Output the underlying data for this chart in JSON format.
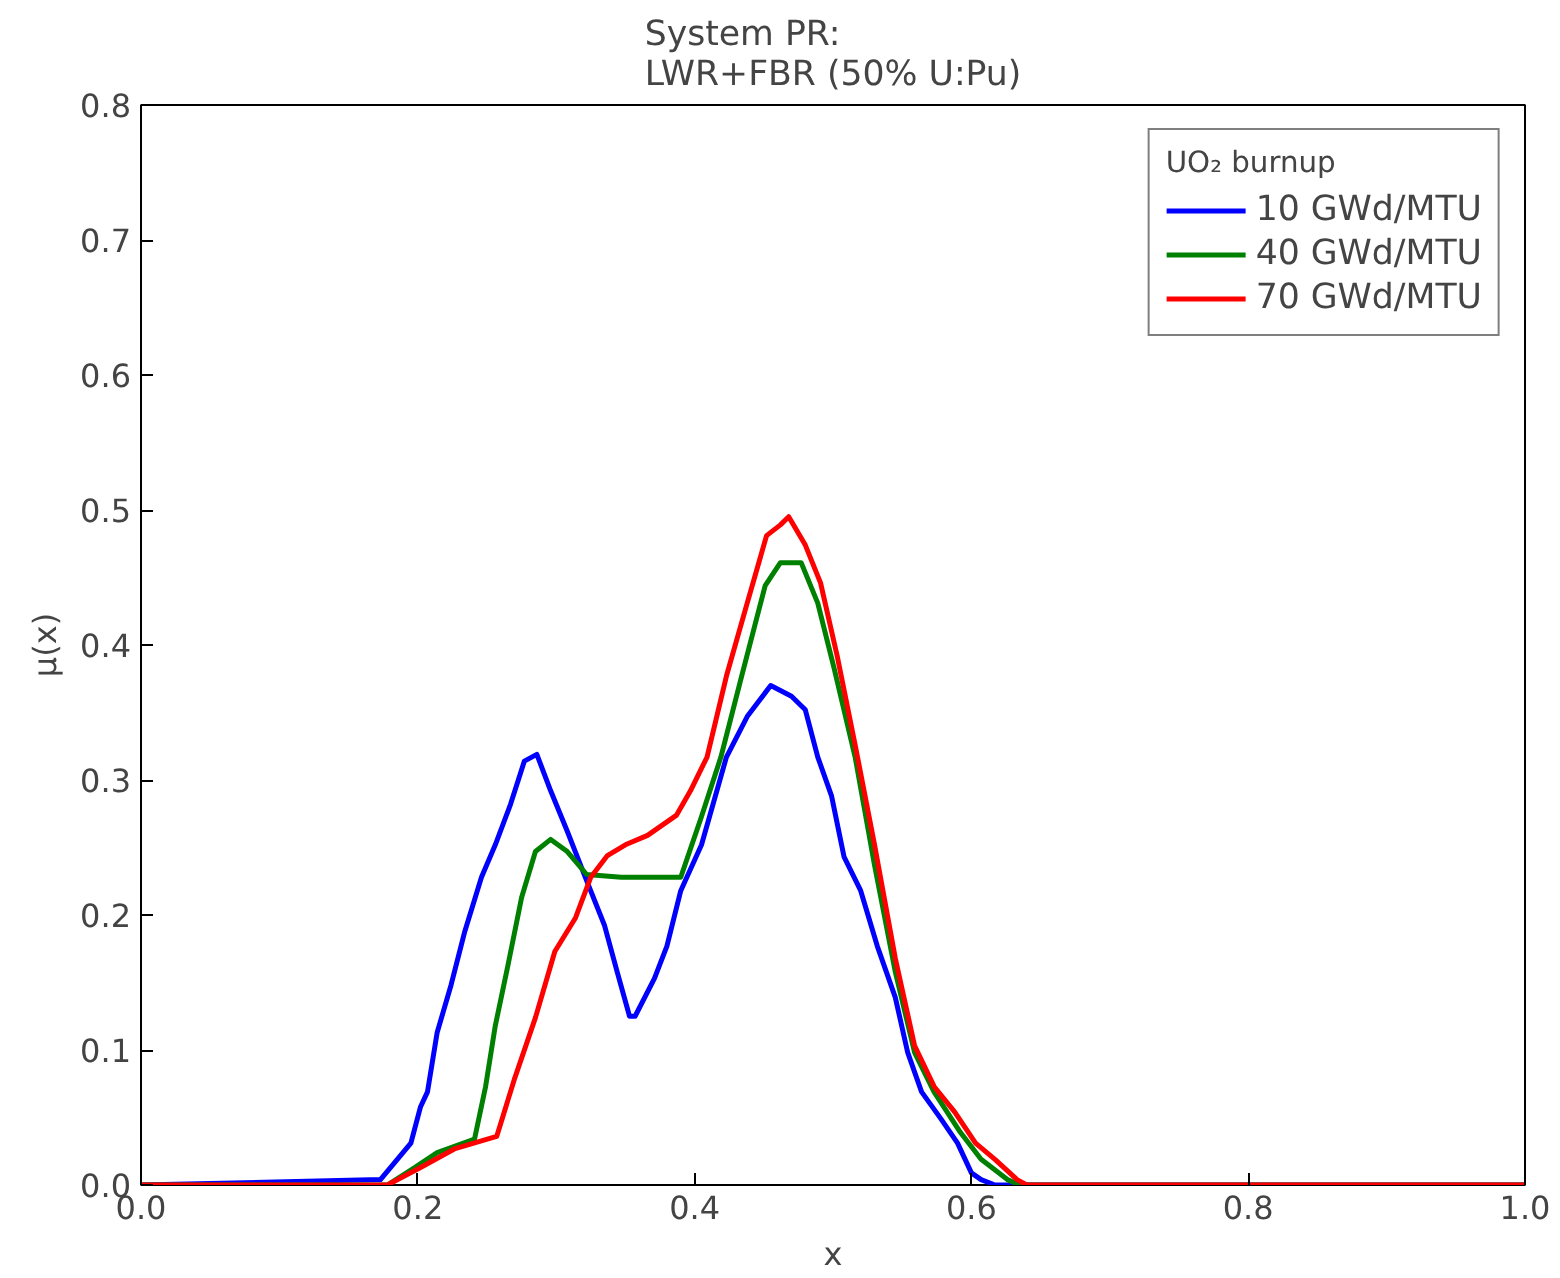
{
  "chart_data": {
    "type": "line",
    "title": "System PR:\nLWR+FBR (50% U:Pu)",
    "xlabel": "x",
    "ylabel": "μ(x)",
    "legend_title": "UO₂ burnup",
    "legend": "top right",
    "grid": false,
    "marker": "none",
    "line_style": "solid",
    "xlim": [
      0,
      1
    ],
    "ylim": [
      0,
      0.8
    ],
    "xticks": [
      {
        "value": 0,
        "label": "0.0"
      },
      0.2,
      0.4,
      0.6,
      0.8,
      {
        "value": 1,
        "label": "1.0"
      }
    ],
    "yticks": [
      {
        "value": 0,
        "label": "0.0"
      },
      0.1,
      0.2,
      0.3,
      0.4,
      0.5,
      0.6,
      0.7,
      0.8
    ],
    "series": [
      {
        "name": "10 GWd/MTU",
        "color": "#0000ff",
        "x": [
          0,
          0.173,
          0.195,
          0.202,
          0.207,
          0.214,
          0.224,
          0.234,
          0.246,
          0.256,
          0.267,
          0.277,
          0.286,
          0.296,
          0.308,
          0.321,
          0.335,
          0.344,
          0.353,
          0.357,
          0.371,
          0.38,
          0.39,
          0.405,
          0.423,
          0.438,
          0.455,
          0.47,
          0.48,
          0.489,
          0.499,
          0.508,
          0.52,
          0.532,
          0.545,
          0.554,
          0.564,
          0.578,
          0.59,
          0.6,
          0.607,
          0.617,
          1
        ],
        "values": [
          0,
          0.004,
          0.031,
          0.058,
          0.069,
          0.113,
          0.148,
          0.188,
          0.228,
          0.252,
          0.282,
          0.314,
          0.319,
          0.292,
          0.262,
          0.228,
          0.192,
          0.158,
          0.125,
          0.125,
          0.153,
          0.177,
          0.218,
          0.252,
          0.317,
          0.347,
          0.37,
          0.362,
          0.352,
          0.317,
          0.288,
          0.243,
          0.218,
          0.177,
          0.139,
          0.098,
          0.069,
          0.049,
          0.031,
          0.009,
          0.004,
          0,
          0
        ]
      },
      {
        "name": "40 GWd/MTU",
        "color": "#008000",
        "x": [
          0,
          0.178,
          0.198,
          0.214,
          0.241,
          0.249,
          0.256,
          0.265,
          0.275,
          0.285,
          0.296,
          0.308,
          0.322,
          0.347,
          0.371,
          0.39,
          0.405,
          0.419,
          0.434,
          0.451,
          0.462,
          0.477,
          0.489,
          0.501,
          0.516,
          0.53,
          0.545,
          0.559,
          0.573,
          0.592,
          0.607,
          0.626,
          0.635,
          1
        ],
        "values": [
          0,
          0,
          0.013,
          0.024,
          0.034,
          0.073,
          0.118,
          0.162,
          0.213,
          0.247,
          0.256,
          0.247,
          0.23,
          0.228,
          0.228,
          0.228,
          0.273,
          0.317,
          0.377,
          0.444,
          0.461,
          0.461,
          0.431,
          0.382,
          0.317,
          0.237,
          0.158,
          0.098,
          0.069,
          0.039,
          0.019,
          0.004,
          0,
          0
        ]
      },
      {
        "name": "70 GWd/MTU",
        "color": "#ff0000",
        "x": [
          0,
          0.178,
          0.202,
          0.227,
          0.257,
          0.27,
          0.285,
          0.299,
          0.314,
          0.325,
          0.337,
          0.35,
          0.366,
          0.387,
          0.397,
          0.409,
          0.423,
          0.438,
          0.452,
          0.462,
          0.468,
          0.48,
          0.491,
          0.503,
          0.516,
          0.53,
          0.545,
          0.559,
          0.573,
          0.588,
          0.603,
          0.617,
          0.633,
          0.64,
          1
        ],
        "values": [
          0,
          0,
          0.013,
          0.027,
          0.036,
          0.079,
          0.124,
          0.173,
          0.198,
          0.228,
          0.244,
          0.252,
          0.259,
          0.274,
          0.292,
          0.317,
          0.377,
          0.431,
          0.481,
          0.489,
          0.495,
          0.474,
          0.446,
          0.392,
          0.326,
          0.252,
          0.168,
          0.103,
          0.073,
          0.054,
          0.031,
          0.019,
          0.004,
          0,
          0
        ]
      }
    ]
  }
}
